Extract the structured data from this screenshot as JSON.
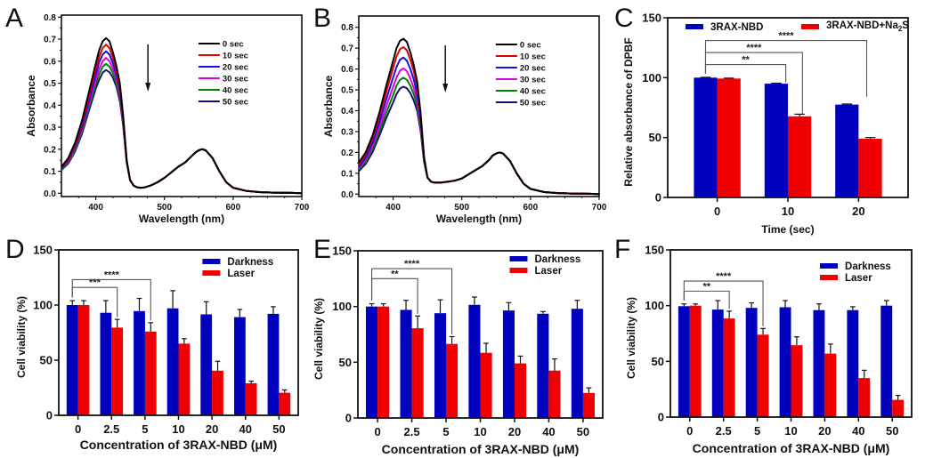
{
  "figure": {
    "panels": [
      "A",
      "B",
      "C",
      "D",
      "E",
      "F"
    ]
  },
  "colors": {
    "blue_bar": "#0000BF",
    "red_bar": "#F00000",
    "spectra": [
      "#000000",
      "#E00000",
      "#1010E0",
      "#E000E0",
      "#008000",
      "#101070"
    ]
  },
  "chart_data": [
    {
      "panel": "A",
      "type": "line",
      "title": "",
      "xlabel": "Wavelength (nm)",
      "ylabel": "Absorbance",
      "xlim": [
        350,
        700
      ],
      "ylim": [
        0.0,
        0.8
      ],
      "xticks": [
        400,
        500,
        600,
        700
      ],
      "yticks": [
        "0.0",
        "0.1",
        "0.2",
        "0.3",
        "0.4",
        "0.5",
        "0.6",
        "0.7",
        "0.8"
      ],
      "legend_position": "top-right",
      "annotation": "downward arrow indicating decreasing absorbance",
      "x": [
        350,
        360,
        370,
        380,
        390,
        400,
        405,
        410,
        415,
        420,
        425,
        430,
        435,
        440,
        445,
        450,
        455,
        460,
        465,
        470,
        480,
        490,
        500,
        510,
        520,
        530,
        540,
        545,
        550,
        555,
        560,
        570,
        580,
        590,
        600,
        620,
        640,
        660,
        680,
        700
      ],
      "series": [
        {
          "name": "0 sec",
          "values": [
            0.12,
            0.16,
            0.23,
            0.33,
            0.46,
            0.59,
            0.65,
            0.69,
            0.705,
            0.69,
            0.64,
            0.58,
            0.5,
            0.35,
            0.15,
            0.06,
            0.035,
            0.027,
            0.025,
            0.026,
            0.035,
            0.05,
            0.07,
            0.095,
            0.12,
            0.14,
            0.17,
            0.185,
            0.195,
            0.2,
            0.195,
            0.16,
            0.1,
            0.05,
            0.025,
            0.01,
            0.005,
            0.003,
            0.002,
            0.0
          ]
        },
        {
          "name": "10 sec",
          "values": [
            0.115,
            0.155,
            0.22,
            0.315,
            0.44,
            0.565,
            0.62,
            0.66,
            0.675,
            0.66,
            0.615,
            0.56,
            0.48,
            0.34,
            0.15,
            0.06,
            0.035,
            0.027,
            0.025,
            0.026,
            0.035,
            0.05,
            0.07,
            0.095,
            0.12,
            0.14,
            0.17,
            0.185,
            0.195,
            0.2,
            0.195,
            0.16,
            0.1,
            0.05,
            0.025,
            0.01,
            0.005,
            0.003,
            0.002,
            0.0
          ]
        },
        {
          "name": "20 sec",
          "values": [
            0.11,
            0.15,
            0.21,
            0.3,
            0.42,
            0.54,
            0.595,
            0.63,
            0.645,
            0.63,
            0.59,
            0.54,
            0.465,
            0.33,
            0.145,
            0.06,
            0.035,
            0.027,
            0.025,
            0.026,
            0.035,
            0.05,
            0.07,
            0.095,
            0.12,
            0.14,
            0.17,
            0.185,
            0.195,
            0.2,
            0.195,
            0.16,
            0.1,
            0.05,
            0.025,
            0.01,
            0.005,
            0.003,
            0.002,
            0.0
          ]
        },
        {
          "name": "30 sec",
          "values": [
            0.11,
            0.145,
            0.205,
            0.29,
            0.405,
            0.515,
            0.565,
            0.6,
            0.615,
            0.6,
            0.565,
            0.52,
            0.45,
            0.32,
            0.145,
            0.06,
            0.035,
            0.027,
            0.025,
            0.026,
            0.035,
            0.05,
            0.07,
            0.095,
            0.12,
            0.14,
            0.17,
            0.185,
            0.195,
            0.2,
            0.195,
            0.16,
            0.1,
            0.05,
            0.025,
            0.01,
            0.005,
            0.003,
            0.002,
            0.0
          ]
        },
        {
          "name": "40 sec",
          "values": [
            0.105,
            0.14,
            0.195,
            0.28,
            0.39,
            0.495,
            0.54,
            0.575,
            0.588,
            0.575,
            0.545,
            0.5,
            0.435,
            0.315,
            0.14,
            0.06,
            0.035,
            0.027,
            0.025,
            0.026,
            0.035,
            0.05,
            0.07,
            0.095,
            0.12,
            0.14,
            0.17,
            0.185,
            0.195,
            0.2,
            0.195,
            0.16,
            0.1,
            0.05,
            0.025,
            0.01,
            0.005,
            0.003,
            0.002,
            0.0
          ]
        },
        {
          "name": "50 sec",
          "values": [
            0.105,
            0.135,
            0.19,
            0.27,
            0.375,
            0.475,
            0.515,
            0.548,
            0.56,
            0.55,
            0.525,
            0.485,
            0.42,
            0.305,
            0.14,
            0.06,
            0.035,
            0.027,
            0.025,
            0.026,
            0.035,
            0.05,
            0.07,
            0.095,
            0.12,
            0.14,
            0.17,
            0.185,
            0.195,
            0.2,
            0.195,
            0.16,
            0.1,
            0.05,
            0.025,
            0.01,
            0.005,
            0.003,
            0.002,
            0.0
          ]
        }
      ]
    },
    {
      "panel": "B",
      "type": "line",
      "title": "",
      "xlabel": "Wavelength (nm)",
      "ylabel": "Absorbance",
      "xlim": [
        350,
        700
      ],
      "ylim": [
        0.0,
        0.85
      ],
      "xticks": [
        400,
        500,
        600,
        700
      ],
      "yticks": [
        "0.0",
        "0.1",
        "0.2",
        "0.3",
        "0.4",
        "0.5",
        "0.6",
        "0.7",
        "0.8"
      ],
      "legend_position": "top-right",
      "annotation": "downward arrow indicating decreasing absorbance",
      "x": [
        350,
        360,
        370,
        380,
        390,
        400,
        405,
        410,
        415,
        420,
        425,
        430,
        435,
        440,
        445,
        450,
        455,
        460,
        465,
        470,
        480,
        490,
        500,
        510,
        520,
        530,
        540,
        545,
        550,
        555,
        560,
        570,
        580,
        590,
        600,
        620,
        640,
        660,
        680,
        700
      ],
      "series": [
        {
          "name": "0 sec",
          "values": [
            0.15,
            0.2,
            0.28,
            0.39,
            0.52,
            0.64,
            0.7,
            0.735,
            0.745,
            0.73,
            0.68,
            0.62,
            0.54,
            0.39,
            0.18,
            0.08,
            0.06,
            0.055,
            0.055,
            0.056,
            0.06,
            0.065,
            0.075,
            0.095,
            0.115,
            0.135,
            0.165,
            0.185,
            0.195,
            0.2,
            0.195,
            0.16,
            0.1,
            0.05,
            0.025,
            0.01,
            0.005,
            0.003,
            0.002,
            0.0
          ]
        },
        {
          "name": "10 sec",
          "values": [
            0.14,
            0.19,
            0.265,
            0.37,
            0.49,
            0.605,
            0.66,
            0.695,
            0.705,
            0.69,
            0.645,
            0.59,
            0.515,
            0.375,
            0.175,
            0.08,
            0.06,
            0.055,
            0.055,
            0.056,
            0.06,
            0.065,
            0.075,
            0.095,
            0.115,
            0.135,
            0.165,
            0.185,
            0.195,
            0.2,
            0.195,
            0.16,
            0.1,
            0.05,
            0.025,
            0.01,
            0.005,
            0.003,
            0.002,
            0.0
          ]
        },
        {
          "name": "20 sec",
          "values": [
            0.13,
            0.175,
            0.245,
            0.345,
            0.455,
            0.56,
            0.61,
            0.645,
            0.655,
            0.64,
            0.6,
            0.55,
            0.48,
            0.355,
            0.17,
            0.08,
            0.06,
            0.055,
            0.055,
            0.056,
            0.06,
            0.065,
            0.075,
            0.095,
            0.115,
            0.135,
            0.165,
            0.185,
            0.195,
            0.2,
            0.195,
            0.16,
            0.1,
            0.05,
            0.025,
            0.01,
            0.005,
            0.003,
            0.002,
            0.0
          ]
        },
        {
          "name": "30 sec",
          "values": [
            0.125,
            0.165,
            0.23,
            0.32,
            0.42,
            0.515,
            0.56,
            0.592,
            0.603,
            0.59,
            0.555,
            0.51,
            0.45,
            0.335,
            0.165,
            0.08,
            0.06,
            0.055,
            0.055,
            0.056,
            0.06,
            0.065,
            0.075,
            0.095,
            0.115,
            0.135,
            0.165,
            0.185,
            0.195,
            0.2,
            0.195,
            0.16,
            0.1,
            0.05,
            0.025,
            0.01,
            0.005,
            0.003,
            0.002,
            0.0
          ]
        },
        {
          "name": "40 sec",
          "values": [
            0.118,
            0.155,
            0.215,
            0.3,
            0.39,
            0.475,
            0.52,
            0.548,
            0.558,
            0.548,
            0.52,
            0.48,
            0.425,
            0.32,
            0.16,
            0.08,
            0.06,
            0.055,
            0.055,
            0.056,
            0.06,
            0.065,
            0.075,
            0.095,
            0.115,
            0.135,
            0.165,
            0.185,
            0.195,
            0.2,
            0.195,
            0.16,
            0.1,
            0.05,
            0.025,
            0.01,
            0.005,
            0.003,
            0.002,
            0.0
          ]
        },
        {
          "name": "50 sec",
          "values": [
            0.11,
            0.145,
            0.2,
            0.28,
            0.365,
            0.44,
            0.48,
            0.506,
            0.515,
            0.508,
            0.485,
            0.45,
            0.4,
            0.305,
            0.155,
            0.08,
            0.06,
            0.055,
            0.055,
            0.056,
            0.06,
            0.065,
            0.075,
            0.095,
            0.115,
            0.135,
            0.165,
            0.185,
            0.195,
            0.2,
            0.195,
            0.16,
            0.1,
            0.05,
            0.025,
            0.01,
            0.005,
            0.003,
            0.002,
            0.0
          ]
        }
      ]
    },
    {
      "panel": "C",
      "type": "bar",
      "title": "",
      "xlabel": "Time (sec)",
      "ylabel": "Relative absorbance of DPBF",
      "ylim": [
        0,
        150
      ],
      "yticks": [
        "0",
        "50",
        "100",
        "150"
      ],
      "categories": [
        "0",
        "10",
        "20"
      ],
      "legend_position": "top",
      "series": [
        {
          "name": "3RAX-NBD",
          "legend_main": "3RAX-NBD",
          "legend_sub": "",
          "legend_tail": "",
          "values": [
            100,
            95,
            77.5
          ],
          "errors": [
            0.3,
            0.4,
            0.5
          ]
        },
        {
          "name": "3RAX-NBD+Na2S",
          "legend_main": "3RAX-NBD+Na",
          "legend_sub": "2",
          "legend_tail": "S",
          "values": [
            99.3,
            67.7,
            49
          ],
          "errors": [
            0.3,
            1.8,
            1.0
          ]
        }
      ],
      "significance": [
        {
          "from": "0",
          "to": "10",
          "label": "**",
          "level": 111
        },
        {
          "from": "0",
          "to": "10-red",
          "label": "****",
          "level": 121
        },
        {
          "from": "0",
          "to": "20",
          "label": "****",
          "level": 131
        }
      ]
    },
    {
      "panel": "D",
      "type": "bar",
      "title": "",
      "xlabel": "Concentration of 3RAX-NBD (μM)",
      "ylabel": "Cell viability (%)",
      "ylim": [
        0,
        150
      ],
      "yticks": [
        "0",
        "50",
        "100",
        "150"
      ],
      "categories": [
        "0",
        "2.5",
        "5",
        "10",
        "20",
        "40",
        "50"
      ],
      "legend_position": "top-right",
      "series": [
        {
          "name": "Darkness",
          "values": [
            100,
            93,
            94.5,
            97,
            91.5,
            89,
            92
          ],
          "errors": [
            4,
            11,
            11.5,
            16,
            11.5,
            7,
            6.5
          ]
        },
        {
          "name": "Laser",
          "values": [
            100,
            79.5,
            76,
            65,
            40.5,
            29,
            20.5
          ],
          "errors": [
            4,
            7.5,
            8,
            4.5,
            8.5,
            2,
            2.5
          ]
        }
      ],
      "significance": [
        {
          "from": 0,
          "to": 1,
          "label": "***",
          "level": 116
        },
        {
          "from": 0,
          "to": 2,
          "label": "****",
          "level": 123
        }
      ]
    },
    {
      "panel": "E",
      "type": "bar",
      "title": "",
      "xlabel": "Concentration of 3RAX-NBD (μM)",
      "ylabel": "Cell viability (%)",
      "ylim": [
        0,
        150
      ],
      "yticks": [
        "0",
        "50",
        "100",
        "150"
      ],
      "categories": [
        "0",
        "2.5",
        "5",
        "10",
        "20",
        "40",
        "50"
      ],
      "legend_position": "top-right",
      "series": [
        {
          "name": "Darkness",
          "values": [
            100,
            97,
            94,
            101.5,
            96.5,
            93.5,
            98
          ],
          "errors": [
            2.5,
            8.5,
            12,
            7,
            7,
            2,
            7.5
          ]
        },
        {
          "name": "Laser",
          "values": [
            100,
            80.5,
            66.5,
            58.5,
            49,
            42.5,
            22.5
          ],
          "errors": [
            2.5,
            11,
            6.5,
            8.5,
            6.5,
            10.5,
            4.5
          ]
        }
      ],
      "significance": [
        {
          "from": 0,
          "to": 1,
          "label": "**",
          "level": 125
        },
        {
          "from": 0,
          "to": 2,
          "label": "****",
          "level": 134
        }
      ]
    },
    {
      "panel": "F",
      "type": "bar",
      "title": "",
      "xlabel": "Concentration of 3RAX-NBD (μM)",
      "ylabel": "Cell viability (%)",
      "ylim": [
        0,
        150
      ],
      "yticks": [
        "0",
        "50",
        "100",
        "150"
      ],
      "categories": [
        "0",
        "2.5",
        "5",
        "10",
        "20",
        "40",
        "50"
      ],
      "legend_position": "top-right",
      "series": [
        {
          "name": "Darkness",
          "values": [
            99.5,
            96.5,
            98,
            98.5,
            96,
            96,
            100
          ],
          "errors": [
            2,
            8,
            4.5,
            6,
            5.5,
            3,
            4.5
          ]
        },
        {
          "name": "Laser",
          "values": [
            100,
            88.5,
            74,
            64.5,
            57,
            35,
            15.5
          ],
          "errors": [
            1.5,
            6.5,
            5.5,
            7.5,
            8.5,
            7,
            4
          ]
        }
      ],
      "significance": [
        {
          "from": 0,
          "to": 1,
          "label": "**",
          "level": 113
        },
        {
          "from": 0,
          "to": 2,
          "label": "****",
          "level": 122
        }
      ]
    }
  ]
}
